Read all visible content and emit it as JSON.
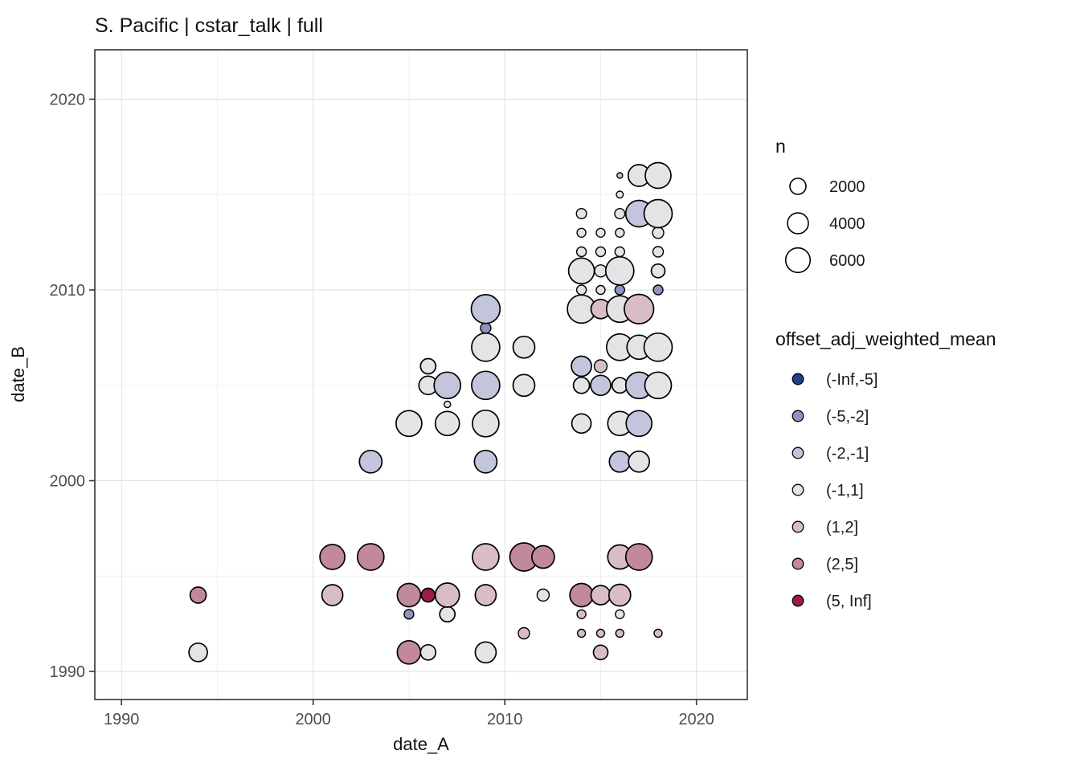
{
  "title": "S. Pacific | cstar_talk | full",
  "axes": {
    "x": {
      "label": "date_A",
      "ticks": [
        1990,
        2000,
        2010,
        2020
      ],
      "minor": [
        1995,
        2005,
        2015
      ],
      "range": [
        1988.6,
        2022.7
      ]
    },
    "y": {
      "label": "date_B",
      "ticks": [
        1990,
        2000,
        2010,
        2020
      ],
      "minor": [
        1995,
        2005,
        2015
      ],
      "range": [
        1988.6,
        2022.6
      ]
    }
  },
  "legend_size": {
    "title": "n",
    "entries": [
      {
        "label": "2000",
        "n": 2000
      },
      {
        "label": "4000",
        "n": 4000
      },
      {
        "label": "6000",
        "n": 6000
      }
    ]
  },
  "legend_color": {
    "title": "offset_adj_weighted_mean",
    "entries": [
      {
        "label": "(-Inf,-5]",
        "color": "#1f418c"
      },
      {
        "label": "(-5,-2]",
        "color": "#8d94c3"
      },
      {
        "label": "(-2,-1]",
        "color": "#c3c5dc"
      },
      {
        "label": "(-1,1]",
        "color": "#e4e4e6"
      },
      {
        "label": "(1,2]",
        "color": "#d8bdc7"
      },
      {
        "label": "(2,5]",
        "color": "#c2899a"
      },
      {
        "label": "(5, Inf]",
        "color": "#9c1b4d"
      }
    ]
  },
  "style": {
    "point_stroke": "#000000",
    "grid_major": "#e4e4e4",
    "grid_minor": "#f0f0f0",
    "panel_border": "#333333",
    "tick_label_color": "#4d4d4d",
    "text_color": "#111111"
  },
  "chart_data": {
    "type": "scatter",
    "subtype": "bubble",
    "title": "S. Pacific | cstar_talk | full",
    "xlabel": "date_A",
    "ylabel": "date_B",
    "xlim": [
      1988.6,
      2022.7
    ],
    "ylim": [
      1988.6,
      2022.6
    ],
    "grid": true,
    "legend_position": "right",
    "size_legend_values": [
      2000,
      4000,
      6000
    ],
    "color_bins": [
      "(-Inf,-5]",
      "(-5,-2]",
      "(-2,-1]",
      "(-1,1]",
      "(1,2]",
      "(2,5]",
      "(5, Inf]"
    ],
    "points": [
      {
        "x": 1994,
        "y": 1991,
        "n": 2900,
        "bin": "(-1,1]"
      },
      {
        "x": 1994,
        "y": 1994,
        "n": 2000,
        "bin": "(2,5]"
      },
      {
        "x": 2001,
        "y": 1994,
        "n": 4000,
        "bin": "(1,2]"
      },
      {
        "x": 2001,
        "y": 1996,
        "n": 6200,
        "bin": "(2,5]"
      },
      {
        "x": 2003,
        "y": 1996,
        "n": 7240,
        "bin": "(2,5]"
      },
      {
        "x": 2003,
        "y": 2001,
        "n": 4840,
        "bin": "(-2,-1]"
      },
      {
        "x": 2005,
        "y": 1991,
        "n": 5280,
        "bin": "(2,5]"
      },
      {
        "x": 2005,
        "y": 1993,
        "n": 400,
        "bin": "(-5,-2]"
      },
      {
        "x": 2005,
        "y": 1994,
        "n": 5280,
        "bin": "(2,5]"
      },
      {
        "x": 2005,
        "y": 2003,
        "n": 6700,
        "bin": "(-1,1]"
      },
      {
        "x": 2006,
        "y": 1991,
        "n": 1730,
        "bin": "(-1,1]"
      },
      {
        "x": 2006,
        "y": 1994,
        "n": 1250,
        "bin": "(5, Inf]"
      },
      {
        "x": 2006,
        "y": 2005,
        "n": 2900,
        "bin": "(-1,1]"
      },
      {
        "x": 2006,
        "y": 2006,
        "n": 1730,
        "bin": "(-1,1]"
      },
      {
        "x": 2007,
        "y": 1993,
        "n": 1730,
        "bin": "(-1,1]"
      },
      {
        "x": 2007,
        "y": 1994,
        "n": 5740,
        "bin": "(1,2]"
      },
      {
        "x": 2007,
        "y": 2003,
        "n": 5740,
        "bin": "(-1,1]"
      },
      {
        "x": 2007,
        "y": 2004,
        "n": 60,
        "bin": "(-1,1]"
      },
      {
        "x": 2007,
        "y": 2005,
        "n": 7240,
        "bin": "(-2,-1]"
      },
      {
        "x": 2009,
        "y": 1991,
        "n": 4000,
        "bin": "(-1,1]"
      },
      {
        "x": 2009,
        "y": 1994,
        "n": 4000,
        "bin": "(1,2]"
      },
      {
        "x": 2009,
        "y": 1996,
        "n": 7240,
        "bin": "(1,2]"
      },
      {
        "x": 2009,
        "y": 2001,
        "n": 4840,
        "bin": "(-2,-1]"
      },
      {
        "x": 2009,
        "y": 2003,
        "n": 7240,
        "bin": "(-1,1]"
      },
      {
        "x": 2009,
        "y": 2005,
        "n": 8300,
        "bin": "(-2,-1]"
      },
      {
        "x": 2009,
        "y": 2007,
        "n": 8300,
        "bin": "(-1,1]"
      },
      {
        "x": 2009,
        "y": 2008,
        "n": 530,
        "bin": "(-5,-2]"
      },
      {
        "x": 2009,
        "y": 2009,
        "n": 8800,
        "bin": "(-2,-1]"
      },
      {
        "x": 2011,
        "y": 1992,
        "n": 680,
        "bin": "(1,2]"
      },
      {
        "x": 2011,
        "y": 1996,
        "n": 8300,
        "bin": "(2,5]"
      },
      {
        "x": 2011,
        "y": 2005,
        "n": 4400,
        "bin": "(-1,1]"
      },
      {
        "x": 2011,
        "y": 2007,
        "n": 4400,
        "bin": "(-1,1]"
      },
      {
        "x": 2012,
        "y": 1994,
        "n": 850,
        "bin": "(-1,1]"
      },
      {
        "x": 2012,
        "y": 1996,
        "n": 4840,
        "bin": "(2,5]"
      },
      {
        "x": 2014,
        "y": 1992,
        "n": 190,
        "bin": "(1,2]"
      },
      {
        "x": 2014,
        "y": 1993,
        "n": 280,
        "bin": "(1,2]"
      },
      {
        "x": 2014,
        "y": 1994,
        "n": 5280,
        "bin": "(2,5]"
      },
      {
        "x": 2014,
        "y": 2003,
        "n": 3270,
        "bin": "(-1,1]"
      },
      {
        "x": 2014,
        "y": 2005,
        "n": 2000,
        "bin": "(-1,1]"
      },
      {
        "x": 2014,
        "y": 2006,
        "n": 3600,
        "bin": "(-2,-1]"
      },
      {
        "x": 2014,
        "y": 2009,
        "n": 8300,
        "bin": "(-1,1]"
      },
      {
        "x": 2014,
        "y": 2010,
        "n": 400,
        "bin": "(-1,1]"
      },
      {
        "x": 2014,
        "y": 2011,
        "n": 6700,
        "bin": "(-1,1]"
      },
      {
        "x": 2014,
        "y": 2012,
        "n": 400,
        "bin": "(-1,1]"
      },
      {
        "x": 2014,
        "y": 2013,
        "n": 280,
        "bin": "(-1,1]"
      },
      {
        "x": 2014,
        "y": 2014,
        "n": 480,
        "bin": "(-1,1]"
      },
      {
        "x": 2015,
        "y": 1991,
        "n": 1480,
        "bin": "(1,2]"
      },
      {
        "x": 2015,
        "y": 1992,
        "n": 190,
        "bin": "(1,2]"
      },
      {
        "x": 2015,
        "y": 1994,
        "n": 3270,
        "bin": "(1,2]"
      },
      {
        "x": 2015,
        "y": 2005,
        "n": 3600,
        "bin": "(-2,-1]"
      },
      {
        "x": 2015,
        "y": 2006,
        "n": 1040,
        "bin": "(1,2]"
      },
      {
        "x": 2015,
        "y": 2009,
        "n": 3270,
        "bin": "(1,2]"
      },
      {
        "x": 2015,
        "y": 2010,
        "n": 280,
        "bin": "(-1,1]"
      },
      {
        "x": 2015,
        "y": 2011,
        "n": 850,
        "bin": "(-1,1]"
      },
      {
        "x": 2015,
        "y": 2012,
        "n": 400,
        "bin": "(-1,1]"
      },
      {
        "x": 2015,
        "y": 2013,
        "n": 280,
        "bin": "(-1,1]"
      },
      {
        "x": 2016,
        "y": 1992,
        "n": 190,
        "bin": "(1,2]"
      },
      {
        "x": 2016,
        "y": 1993,
        "n": 280,
        "bin": "(-1,1]"
      },
      {
        "x": 2016,
        "y": 1994,
        "n": 4400,
        "bin": "(1,2]"
      },
      {
        "x": 2016,
        "y": 1996,
        "n": 5740,
        "bin": "(1,2]"
      },
      {
        "x": 2016,
        "y": 2001,
        "n": 4000,
        "bin": "(-2,-1]"
      },
      {
        "x": 2016,
        "y": 2003,
        "n": 5740,
        "bin": "(-1,1]"
      },
      {
        "x": 2016,
        "y": 2005,
        "n": 1800,
        "bin": "(-1,1]"
      },
      {
        "x": 2016,
        "y": 2007,
        "n": 7240,
        "bin": "(-1,1]"
      },
      {
        "x": 2016,
        "y": 2009,
        "n": 7240,
        "bin": "(-1,1]"
      },
      {
        "x": 2016,
        "y": 2010,
        "n": 400,
        "bin": "(-5,-2]"
      },
      {
        "x": 2016,
        "y": 2011,
        "n": 8300,
        "bin": "(-1,1]"
      },
      {
        "x": 2016,
        "y": 2012,
        "n": 400,
        "bin": "(-1,1]"
      },
      {
        "x": 2016,
        "y": 2013,
        "n": 280,
        "bin": "(-1,1]"
      },
      {
        "x": 2016,
        "y": 2014,
        "n": 480,
        "bin": "(-1,1]"
      },
      {
        "x": 2016,
        "y": 2015,
        "n": 90,
        "bin": "(-1,1]"
      },
      {
        "x": 2016,
        "y": 2016,
        "n": 20,
        "bin": "(1,2]"
      },
      {
        "x": 2017,
        "y": 1996,
        "n": 7240,
        "bin": "(2,5]"
      },
      {
        "x": 2017,
        "y": 2001,
        "n": 4000,
        "bin": "(-1,1]"
      },
      {
        "x": 2017,
        "y": 2003,
        "n": 6700,
        "bin": "(-2,-1]"
      },
      {
        "x": 2017,
        "y": 2005,
        "n": 7240,
        "bin": "(-2,-1]"
      },
      {
        "x": 2017,
        "y": 2007,
        "n": 5740,
        "bin": "(-1,1]"
      },
      {
        "x": 2017,
        "y": 2009,
        "n": 9300,
        "bin": "(1,2]"
      },
      {
        "x": 2017,
        "y": 2014,
        "n": 7240,
        "bin": "(-2,-1]"
      },
      {
        "x": 2017,
        "y": 2016,
        "n": 4400,
        "bin": "(-1,1]"
      },
      {
        "x": 2018,
        "y": 1992,
        "n": 190,
        "bin": "(1,2]"
      },
      {
        "x": 2018,
        "y": 2005,
        "n": 7240,
        "bin": "(-1,1]"
      },
      {
        "x": 2018,
        "y": 2007,
        "n": 8300,
        "bin": "(-1,1]"
      },
      {
        "x": 2018,
        "y": 2010,
        "n": 400,
        "bin": "(-5,-2]"
      },
      {
        "x": 2018,
        "y": 2011,
        "n": 1250,
        "bin": "(-1,1]"
      },
      {
        "x": 2018,
        "y": 2012,
        "n": 530,
        "bin": "(-1,1]"
      },
      {
        "x": 2018,
        "y": 2013,
        "n": 680,
        "bin": "(-1,1]"
      },
      {
        "x": 2018,
        "y": 2014,
        "n": 8300,
        "bin": "(-1,1]"
      },
      {
        "x": 2018,
        "y": 2016,
        "n": 6700,
        "bin": "(-1,1]"
      }
    ]
  }
}
